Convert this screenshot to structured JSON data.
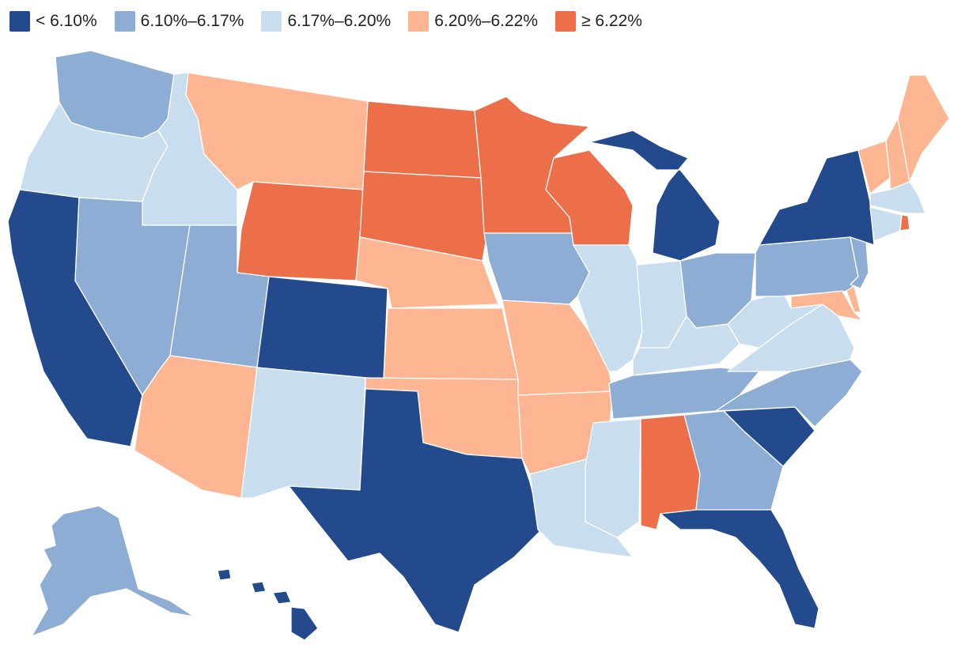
{
  "legend": {
    "items": [
      {
        "label": "< 6.10%",
        "color": "#234a8c"
      },
      {
        "label": "6.10%–6.17%",
        "color": "#8eadd5"
      },
      {
        "label": "6.17%–6.20%",
        "color": "#c8ddee"
      },
      {
        "label": "6.20%–6.22%",
        "color": "#fdb592"
      },
      {
        "label": "≥ 6.22%",
        "color": "#ec6f4a"
      }
    ]
  },
  "states": [
    {
      "id": "WA",
      "bin": 1
    },
    {
      "id": "OR",
      "bin": 2
    },
    {
      "id": "CA",
      "bin": 0
    },
    {
      "id": "ID",
      "bin": 2
    },
    {
      "id": "NV",
      "bin": 1
    },
    {
      "id": "MT",
      "bin": 3
    },
    {
      "id": "WY",
      "bin": 4
    },
    {
      "id": "UT",
      "bin": 1
    },
    {
      "id": "AZ",
      "bin": 3
    },
    {
      "id": "CO",
      "bin": 0
    },
    {
      "id": "NM",
      "bin": 2
    },
    {
      "id": "ND",
      "bin": 4
    },
    {
      "id": "SD",
      "bin": 4
    },
    {
      "id": "NE",
      "bin": 3
    },
    {
      "id": "KS",
      "bin": 3
    },
    {
      "id": "OK",
      "bin": 3
    },
    {
      "id": "TX",
      "bin": 0
    },
    {
      "id": "MN",
      "bin": 4
    },
    {
      "id": "IA",
      "bin": 1
    },
    {
      "id": "MO",
      "bin": 3
    },
    {
      "id": "AR",
      "bin": 3
    },
    {
      "id": "LA",
      "bin": 2
    },
    {
      "id": "WI",
      "bin": 4
    },
    {
      "id": "IL",
      "bin": 2
    },
    {
      "id": "MI",
      "bin": 0
    },
    {
      "id": "IN",
      "bin": 2
    },
    {
      "id": "OH",
      "bin": 1
    },
    {
      "id": "KY",
      "bin": 2
    },
    {
      "id": "TN",
      "bin": 1
    },
    {
      "id": "MS",
      "bin": 2
    },
    {
      "id": "AL",
      "bin": 4
    },
    {
      "id": "GA",
      "bin": 1
    },
    {
      "id": "FL",
      "bin": 0
    },
    {
      "id": "SC",
      "bin": 0
    },
    {
      "id": "NC",
      "bin": 1
    },
    {
      "id": "VA",
      "bin": 2
    },
    {
      "id": "WV",
      "bin": 2
    },
    {
      "id": "PA",
      "bin": 1
    },
    {
      "id": "NY",
      "bin": 0
    },
    {
      "id": "NJ",
      "bin": 1
    },
    {
      "id": "DE",
      "bin": 3
    },
    {
      "id": "MD",
      "bin": 3
    },
    {
      "id": "VT",
      "bin": 3
    },
    {
      "id": "NH",
      "bin": 3
    },
    {
      "id": "ME",
      "bin": 3
    },
    {
      "id": "MA",
      "bin": 2
    },
    {
      "id": "CT",
      "bin": 2
    },
    {
      "id": "RI",
      "bin": 4
    },
    {
      "id": "AK",
      "bin": 1
    },
    {
      "id": "HI",
      "bin": 0
    }
  ]
}
